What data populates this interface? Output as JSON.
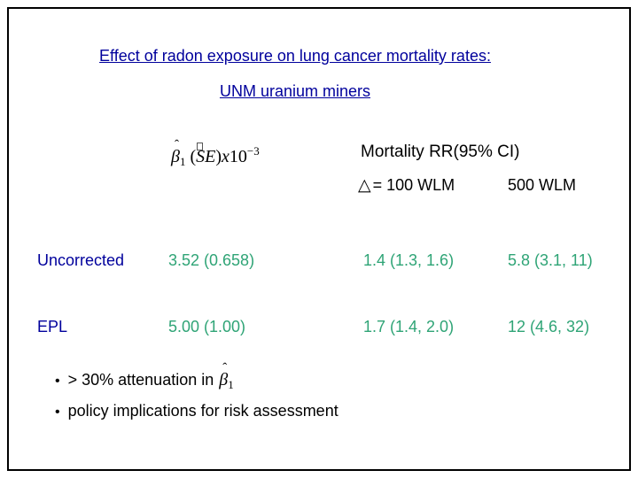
{
  "slide": {
    "colors": {
      "title": "#00009c",
      "label": "#00009c",
      "value": "#2fa476",
      "text": "#000000"
    },
    "title_line1": "Effect of radon exposure on lung cancer mortality rates:",
    "title_line2": "UNM uranium miners",
    "formula": {
      "beta": "β",
      "hat": "ˆ",
      "sub": "1",
      "open": " (",
      "S": "S",
      "E": "E",
      "close": ")",
      "x": "x",
      "base": "10",
      "exp": "−3"
    },
    "table": {
      "header": {
        "rr_title": "Mortality RR(95% CI)",
        "delta_symbol": "△",
        "col_100_label": "= 100 WLM",
        "col_500_label": "500 WLM"
      },
      "rows": [
        {
          "label": "Uncorrected",
          "beta_se": "3.52 (0.658)",
          "rr_100": "1.4 (1.3, 1.6)",
          "rr_500": "5.8 (3.1, 11)"
        },
        {
          "label": "EPL",
          "beta_se": "5.00 (1.00)",
          "rr_100": "1.7 (1.4, 2.0)",
          "rr_500": "12 (4.6, 32)"
        }
      ]
    },
    "bullets": {
      "marker": "•",
      "b1_text": "> 30% attenuation in",
      "b1_beta": "β",
      "b1_hat": "ˆ",
      "b1_sub": "1",
      "b2_text": "policy implications for risk assessment"
    }
  }
}
